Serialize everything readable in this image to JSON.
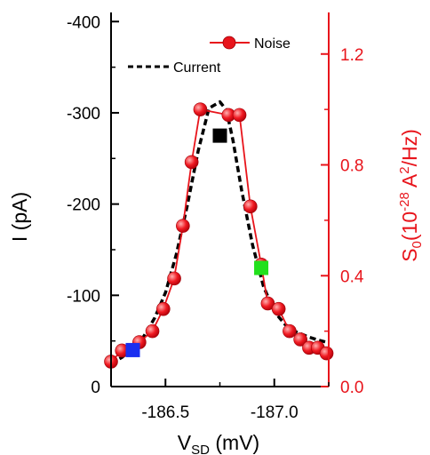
{
  "chart_data": {
    "type": "line",
    "xlabel_main": "V",
    "xlabel_sub": "SD",
    "xlabel_unit": " (mV)",
    "ylabel_left": "I (pA)",
    "ylabel_right_pre": "S",
    "ylabel_right_sub": "0",
    "ylabel_right_mid": "(10",
    "ylabel_right_sup": "-28",
    "ylabel_right_post": " A",
    "ylabel_right_sup2": "2",
    "ylabel_right_end": "/Hz)",
    "xlim": [
      -186.25,
      -187.25
    ],
    "ylim_left": [
      0,
      -410
    ],
    "ylim_right": [
      0.0,
      1.35
    ],
    "x_ticks": [
      -186.5,
      -187.0
    ],
    "x_tick_labels": [
      "-186.5",
      "-187.0"
    ],
    "y_left_ticks": [
      0,
      -100,
      -200,
      -300,
      -400
    ],
    "y_left_tick_labels": [
      "0",
      "-100",
      "-200",
      "-300",
      "-400"
    ],
    "y_right_ticks": [
      0.0,
      0.4,
      0.8,
      1.2
    ],
    "y_right_tick_labels": [
      "0.0",
      "0.4",
      "0.8",
      "1.2"
    ],
    "legend": {
      "noise": "Noise",
      "current": "Current",
      "placement": "top-right"
    },
    "colors": {
      "noise": "#e8141b",
      "current": "#000000",
      "blue": "#1a2ff0",
      "black": "#000000",
      "green": "#22e01c"
    },
    "series": [
      {
        "name": "Noise",
        "axis": "right",
        "x": [
          -186.25,
          -186.3,
          -186.38,
          -186.44,
          -186.49,
          -186.54,
          -186.58,
          -186.62,
          -186.66,
          -186.79,
          -186.84,
          -186.89,
          -186.94,
          -186.97,
          -187.02,
          -187.07,
          -187.12,
          -187.16,
          -187.2,
          -187.24
        ],
        "values": [
          0.09,
          0.13,
          0.16,
          0.2,
          0.28,
          0.39,
          0.58,
          0.81,
          1.0,
          0.98,
          0.98,
          0.65,
          0.44,
          0.3,
          0.28,
          0.2,
          0.17,
          0.14,
          0.14,
          0.12
        ]
      },
      {
        "name": "Current",
        "axis": "left",
        "x": [
          -186.25,
          -186.3,
          -186.35,
          -186.4,
          -186.45,
          -186.5,
          -186.55,
          -186.6,
          -186.65,
          -186.7,
          -186.75,
          -186.78,
          -186.81,
          -186.85,
          -186.9,
          -186.95,
          -187.0,
          -187.05,
          -187.1,
          -187.15,
          -187.2,
          -187.25
        ],
        "values": [
          -25,
          -32,
          -42,
          -55,
          -75,
          -103,
          -145,
          -198,
          -258,
          -305,
          -312,
          -303,
          -270,
          -215,
          -155,
          -110,
          -82,
          -68,
          -60,
          -55,
          -51,
          -48
        ]
      }
    ],
    "markers": [
      {
        "color": "blue",
        "x": -186.35,
        "axis": "left",
        "value": -40
      },
      {
        "color": "black",
        "x": -186.75,
        "axis": "left",
        "value": -275
      },
      {
        "color": "green",
        "x": -186.94,
        "axis": "left",
        "value": -130
      }
    ]
  }
}
